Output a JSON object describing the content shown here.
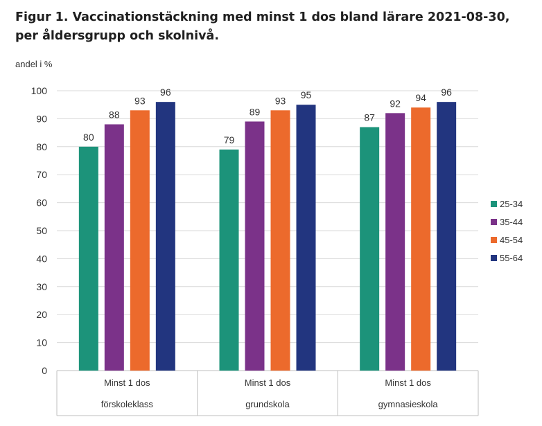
{
  "title": "Figur 1. Vaccinationstäckning med minst 1 dos bland lärare 2021-08-30, per åldersgrupp och skolnivå.",
  "chart_data": {
    "type": "bar",
    "ylabel": "andel i %",
    "ylim": [
      0,
      100
    ],
    "yticks": [
      0,
      10,
      20,
      30,
      40,
      50,
      60,
      70,
      80,
      90,
      100
    ],
    "grid": true,
    "legend_position": "right",
    "categories": [
      {
        "line1": "Minst 1 dos",
        "line2": "förskoleklass"
      },
      {
        "line1": "Minst 1 dos",
        "line2": "grundskola"
      },
      {
        "line1": "Minst 1 dos",
        "line2": "gymnasieskola"
      }
    ],
    "series": [
      {
        "name": "25-34",
        "color": "#1c937a",
        "values": [
          80,
          79,
          87
        ]
      },
      {
        "name": "35-44",
        "color": "#7b3289",
        "values": [
          88,
          89,
          92
        ]
      },
      {
        "name": "45-54",
        "color": "#ec6a2c",
        "values": [
          93,
          93,
          94
        ]
      },
      {
        "name": "55-64",
        "color": "#22357f",
        "values": [
          96,
          95,
          96
        ]
      }
    ]
  }
}
